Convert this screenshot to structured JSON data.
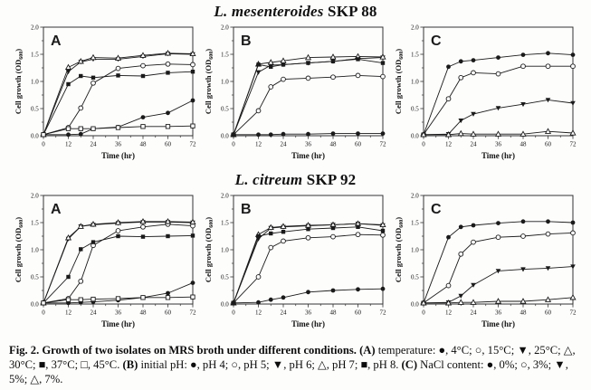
{
  "figure": {
    "row_titles": [
      {
        "italic": "L. mesenteroides",
        "rest": " SKP 88"
      },
      {
        "italic": "L. citreum",
        "rest": " SKP 92"
      }
    ]
  },
  "axes": {
    "xlabel": "Time (hr)",
    "ylabel_pre": "Cell growth (OD",
    "ylabel_sub": "600",
    "ylabel_post": ")",
    "xlim": [
      0,
      72
    ],
    "ylim": [
      0,
      2
    ],
    "xticks": [
      0,
      12,
      24,
      36,
      48,
      60,
      72
    ],
    "x_minor_ticks": [
      6,
      18,
      30,
      42,
      54,
      66
    ],
    "ytick_labels": [
      "0.0",
      "0.5",
      "1.0",
      "1.5",
      "2.0"
    ],
    "ytick_values": [
      0,
      0.5,
      1.0,
      1.5,
      2.0
    ],
    "y_minor_ticks": [
      0.25,
      0.75,
      1.25,
      1.75
    ],
    "grid": false
  },
  "colors": {
    "line": "#1a1a1a",
    "axis": "#333333",
    "text": "#111111",
    "marker_open_fill": "#ffffff"
  },
  "chart_data": [
    {
      "type": "line",
      "row_title": "L. mesenteroides SKP 88",
      "panel_label": "A",
      "condition": "temperature",
      "x": [
        0,
        12,
        18,
        24,
        36,
        48,
        60,
        72
      ],
      "series": [
        {
          "name": "4°C",
          "marker": "filled-circle",
          "values": [
            0.02,
            0.02,
            0.03,
            0.13,
            0.16,
            0.34,
            0.42,
            0.65
          ]
        },
        {
          "name": "15°C",
          "marker": "open-circle",
          "values": [
            0.02,
            0.15,
            0.51,
            0.97,
            1.24,
            1.29,
            1.32,
            1.31
          ]
        },
        {
          "name": "25°C",
          "marker": "filled-triangle-down",
          "values": [
            0.02,
            1.18,
            1.36,
            1.41,
            1.41,
            1.46,
            1.51,
            1.5
          ]
        },
        {
          "name": "30°C",
          "marker": "open-triangle-up",
          "values": [
            0.02,
            1.26,
            1.37,
            1.44,
            1.43,
            1.48,
            1.52,
            1.51
          ]
        },
        {
          "name": "37°C",
          "marker": "filled-square",
          "values": [
            0.02,
            0.95,
            1.1,
            1.07,
            1.11,
            1.1,
            1.16,
            1.18
          ]
        },
        {
          "name": "45°C",
          "marker": "open-square",
          "values": [
            0.02,
            0.13,
            0.13,
            0.13,
            0.15,
            0.17,
            0.17,
            0.18
          ]
        }
      ]
    },
    {
      "type": "line",
      "row_title": "L. mesenteroides SKP 88",
      "panel_label": "B",
      "condition": "initial pH",
      "x": [
        0,
        12,
        18,
        24,
        36,
        48,
        60,
        72
      ],
      "series": [
        {
          "name": "pH 4",
          "marker": "filled-circle",
          "values": [
            0.02,
            0.02,
            0.02,
            0.03,
            0.03,
            0.04,
            0.04,
            0.04
          ]
        },
        {
          "name": "pH 5",
          "marker": "open-circle",
          "values": [
            0.02,
            0.46,
            0.9,
            1.04,
            1.06,
            1.08,
            1.11,
            1.09
          ]
        },
        {
          "name": "pH 6",
          "marker": "filled-triangle-down",
          "values": [
            0.02,
            1.17,
            1.3,
            1.31,
            1.34,
            1.37,
            1.42,
            1.44
          ]
        },
        {
          "name": "pH 7",
          "marker": "open-triangle-up",
          "values": [
            0.02,
            1.32,
            1.35,
            1.38,
            1.44,
            1.45,
            1.46,
            1.45
          ]
        },
        {
          "name": "pH 8",
          "marker": "filled-square",
          "values": [
            0.02,
            1.31,
            1.27,
            1.31,
            1.34,
            1.37,
            1.41,
            1.34
          ]
        }
      ]
    },
    {
      "type": "line",
      "row_title": "L. mesenteroides SKP 88",
      "panel_label": "C",
      "condition": "NaCl content",
      "x": [
        0,
        12,
        18,
        24,
        36,
        48,
        60,
        72
      ],
      "series": [
        {
          "name": "0%",
          "marker": "filled-circle",
          "values": [
            0.02,
            1.27,
            1.37,
            1.39,
            1.44,
            1.49,
            1.52,
            1.49
          ]
        },
        {
          "name": "3%",
          "marker": "open-circle",
          "values": [
            0.02,
            0.68,
            1.07,
            1.16,
            1.14,
            1.28,
            1.28,
            1.28
          ]
        },
        {
          "name": "5%",
          "marker": "filled-triangle-down",
          "values": [
            0.02,
            0.03,
            0.28,
            0.4,
            0.51,
            0.58,
            0.66,
            0.6
          ]
        },
        {
          "name": "7%",
          "marker": "open-triangle-up",
          "values": [
            0.02,
            0.02,
            0.04,
            0.03,
            0.03,
            0.03,
            0.08,
            0.05
          ]
        }
      ]
    },
    {
      "type": "line",
      "row_title": "L. citreum SKP 92",
      "panel_label": "A",
      "condition": "temperature",
      "x": [
        0,
        12,
        18,
        24,
        36,
        48,
        60,
        72
      ],
      "series": [
        {
          "name": "4°C",
          "marker": "filled-circle",
          "values": [
            0.02,
            0.02,
            0.03,
            0.04,
            0.07,
            0.12,
            0.2,
            0.39
          ]
        },
        {
          "name": "15°C",
          "marker": "open-circle",
          "values": [
            0.02,
            0.1,
            0.42,
            1.08,
            1.35,
            1.42,
            1.47,
            1.44
          ]
        },
        {
          "name": "25°C",
          "marker": "filled-triangle-down",
          "values": [
            0.02,
            1.2,
            1.43,
            1.46,
            1.49,
            1.51,
            1.51,
            1.5
          ]
        },
        {
          "name": "30°C",
          "marker": "open-triangle-up",
          "values": [
            0.02,
            1.22,
            1.43,
            1.47,
            1.5,
            1.52,
            1.52,
            1.51
          ]
        },
        {
          "name": "37°C",
          "marker": "filled-square",
          "values": [
            0.02,
            0.5,
            1.01,
            1.14,
            1.25,
            1.24,
            1.25,
            1.26
          ]
        },
        {
          "name": "45°C",
          "marker": "open-square",
          "values": [
            0.02,
            0.08,
            0.08,
            0.09,
            0.1,
            0.12,
            0.12,
            0.13
          ]
        }
      ]
    },
    {
      "type": "line",
      "row_title": "L. citreum SKP 92",
      "panel_label": "B",
      "condition": "initial pH",
      "x": [
        0,
        12,
        18,
        24,
        36,
        48,
        60,
        72
      ],
      "series": [
        {
          "name": "pH 4",
          "marker": "filled-circle",
          "values": [
            0.02,
            0.03,
            0.08,
            0.12,
            0.22,
            0.25,
            0.27,
            0.28
          ]
        },
        {
          "name": "pH 5",
          "marker": "open-circle",
          "values": [
            0.02,
            0.5,
            1.04,
            1.16,
            1.22,
            1.24,
            1.28,
            1.27
          ]
        },
        {
          "name": "pH 6",
          "marker": "filled-triangle-down",
          "values": [
            0.02,
            1.2,
            1.4,
            1.42,
            1.44,
            1.46,
            1.48,
            1.45
          ]
        },
        {
          "name": "pH 7",
          "marker": "open-triangle-up",
          "values": [
            0.02,
            1.28,
            1.41,
            1.43,
            1.45,
            1.46,
            1.48,
            1.46
          ]
        },
        {
          "name": "pH 8",
          "marker": "filled-square",
          "values": [
            0.02,
            1.25,
            1.3,
            1.33,
            1.38,
            1.4,
            1.42,
            1.35
          ]
        }
      ]
    },
    {
      "type": "line",
      "row_title": "L. citreum SKP 92",
      "panel_label": "C",
      "condition": "NaCl content",
      "x": [
        0,
        12,
        18,
        24,
        36,
        48,
        60,
        72
      ],
      "series": [
        {
          "name": "0%",
          "marker": "filled-circle",
          "values": [
            0.02,
            1.23,
            1.42,
            1.45,
            1.49,
            1.52,
            1.52,
            1.5
          ]
        },
        {
          "name": "3%",
          "marker": "open-circle",
          "values": [
            0.02,
            0.34,
            0.92,
            1.14,
            1.23,
            1.25,
            1.29,
            1.31
          ]
        },
        {
          "name": "5%",
          "marker": "filled-triangle-down",
          "values": [
            0.02,
            0.03,
            0.15,
            0.35,
            0.61,
            0.64,
            0.66,
            0.69
          ]
        },
        {
          "name": "7%",
          "marker": "open-triangle-up",
          "values": [
            0.02,
            0.02,
            0.03,
            0.03,
            0.05,
            0.05,
            0.08,
            0.12
          ]
        }
      ]
    }
  ],
  "caption": {
    "segments": [
      {
        "bold": true,
        "text": "Fig. 2. Growth of two isolates on MRS broth under different conditions."
      },
      {
        "bold": false,
        "text": " "
      },
      {
        "bold": true,
        "text": "(A)"
      },
      {
        "bold": false,
        "text": " temperature: ●, 4°C; ○, 15°C; ▼, 25°C; △, 30°C; ■, 37°C; □, 45°C. "
      },
      {
        "bold": true,
        "text": "(B)"
      },
      {
        "bold": false,
        "text": " initial pH: ●, pH 4; ○, pH 5; ▼, pH 6; △, pH 7; ■, pH 8. "
      },
      {
        "bold": true,
        "text": "(C)"
      },
      {
        "bold": false,
        "text": " NaCl content: ●, 0%; ○, 3%; ▼, 5%; △, 7%."
      }
    ]
  }
}
